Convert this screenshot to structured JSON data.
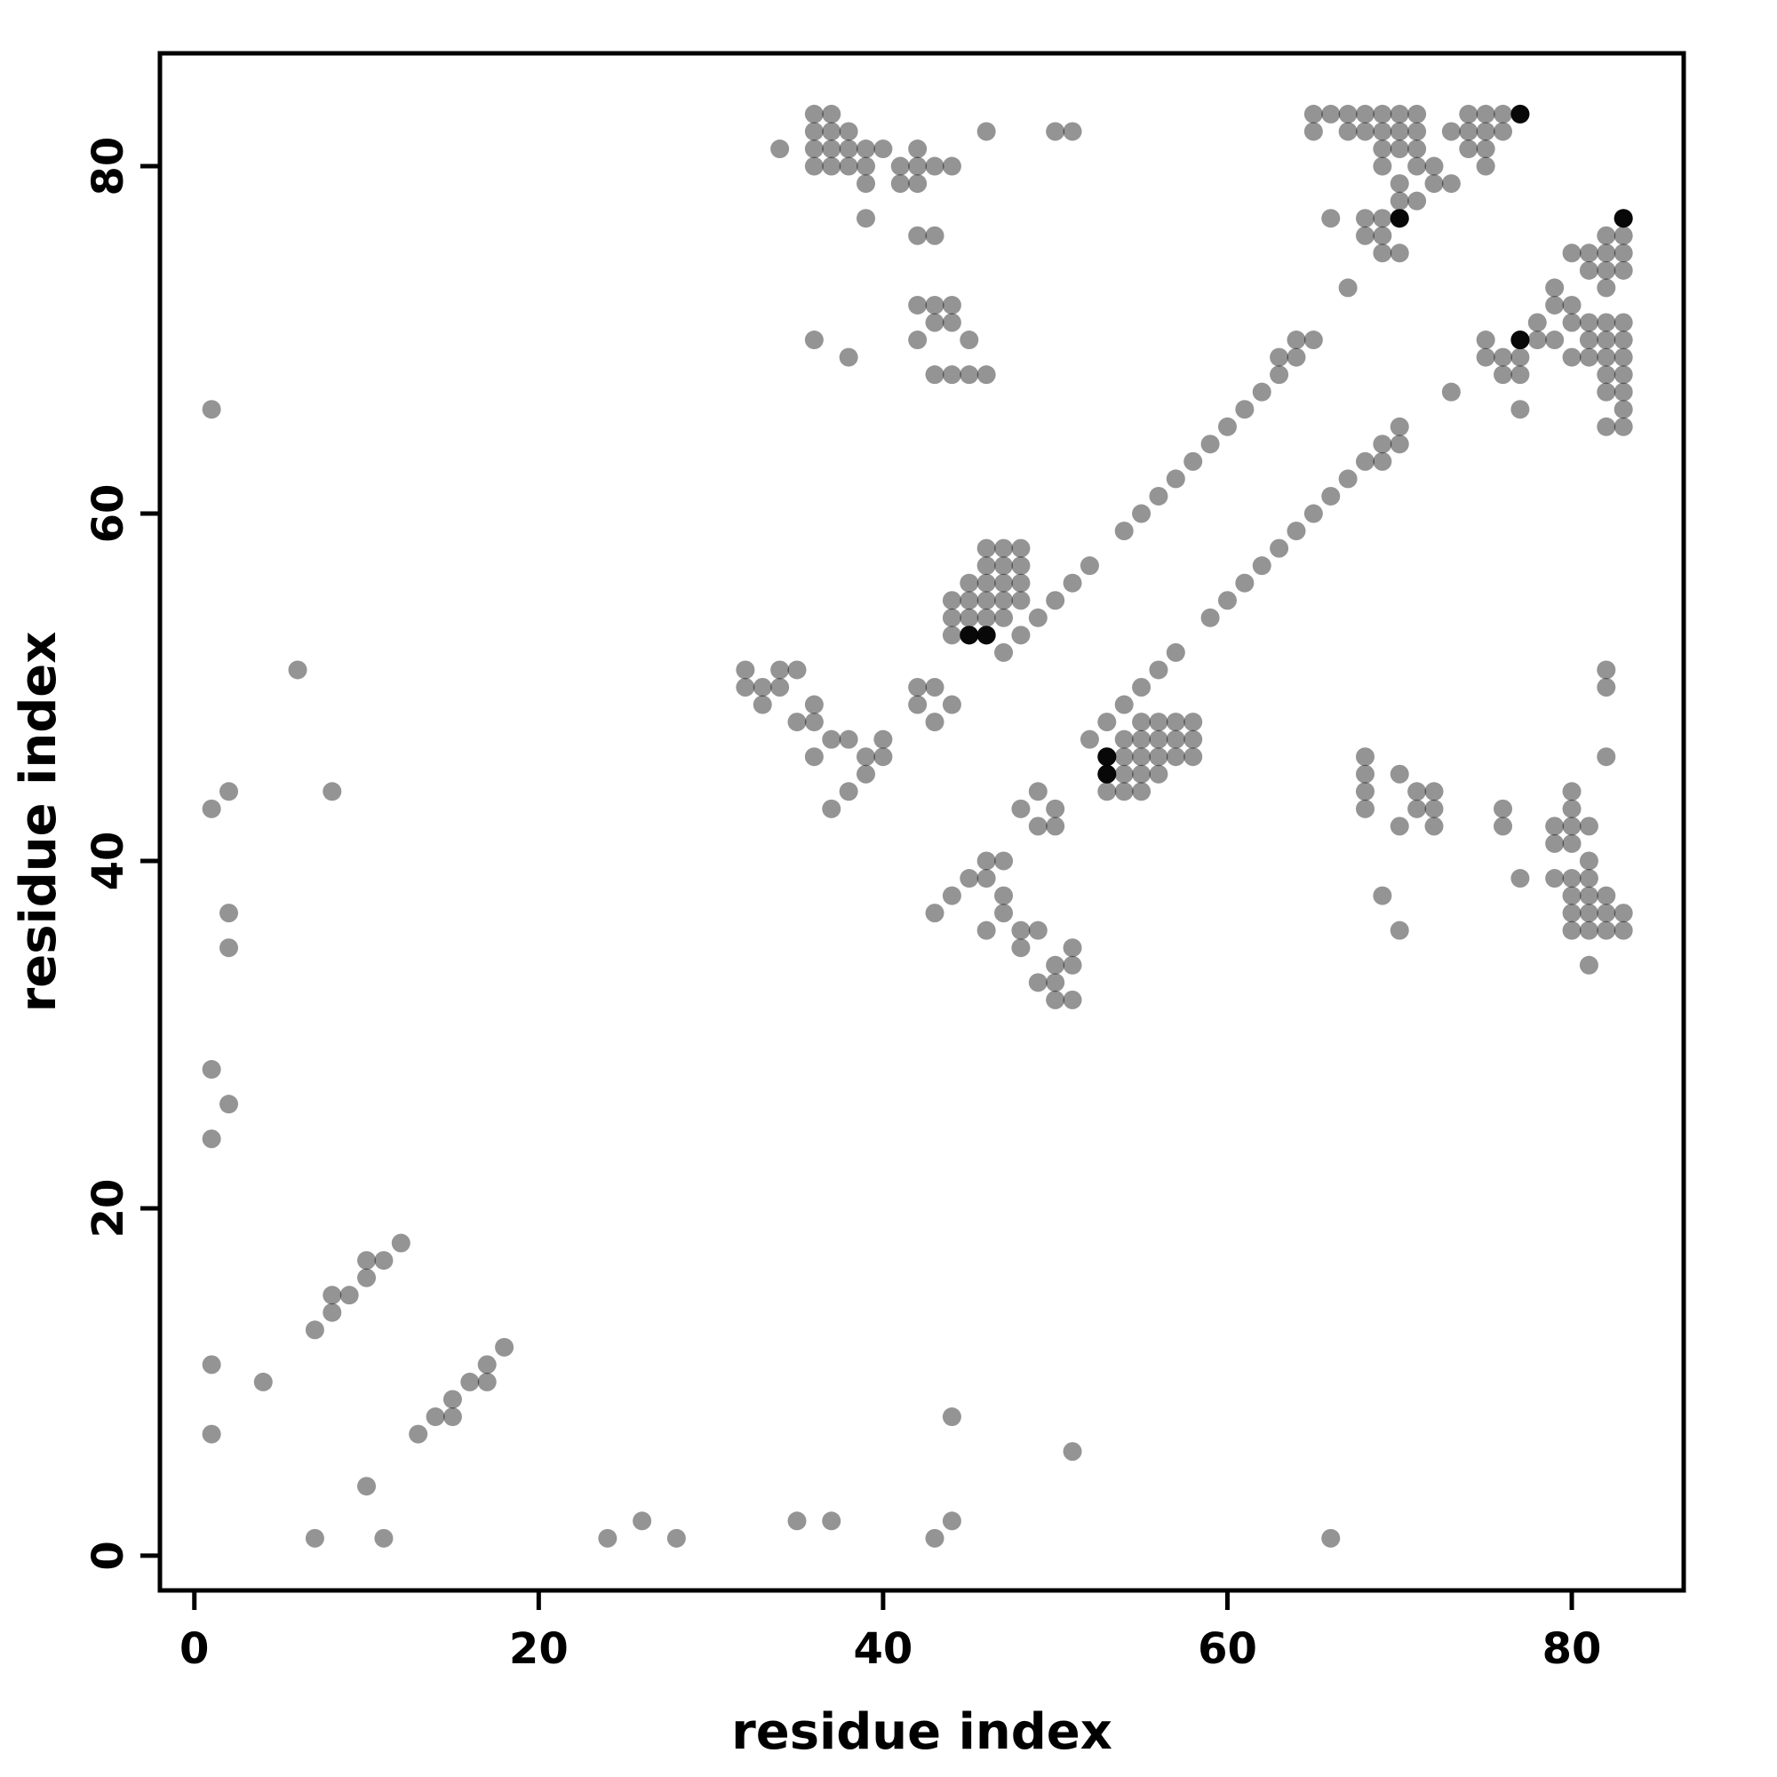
{
  "figure": {
    "background": "#ffffff",
    "point_color": "#000000",
    "point_opacity": 0.42,
    "emphasis_opacity": 0.95,
    "axis_color": "#000000"
  },
  "chart_data": {
    "type": "scatter",
    "title": "",
    "xlabel": "residue index",
    "ylabel": "residue index",
    "xlim": [
      -2,
      86.5
    ],
    "ylim": [
      -2,
      86.5
    ],
    "xticks": [
      0,
      20,
      40,
      60,
      80
    ],
    "yticks": [
      0,
      20,
      40,
      60,
      80
    ],
    "xtick_labels": [
      "0",
      "20",
      "40",
      "60",
      "80"
    ],
    "ytick_labels": [
      "0",
      "20",
      "40",
      "60",
      "80"
    ],
    "grid": false,
    "legend": false,
    "symmetric": true,
    "contacts": [
      [
        1,
        7
      ],
      [
        1,
        11
      ],
      [
        4,
        10
      ],
      [
        7,
        13
      ],
      [
        8,
        14
      ],
      [
        8,
        15
      ],
      [
        9,
        15
      ],
      [
        10,
        16
      ],
      [
        10,
        17
      ],
      [
        11,
        17
      ],
      [
        12,
        18
      ],
      [
        1,
        24
      ],
      [
        2,
        26
      ],
      [
        1,
        28
      ],
      [
        2,
        35
      ],
      [
        2,
        37
      ],
      [
        1,
        43
      ],
      [
        2,
        44
      ],
      [
        8,
        44
      ],
      [
        6,
        51
      ],
      [
        1,
        66
      ],
      [
        44,
        53
      ],
      [
        44,
        54
      ],
      [
        44,
        55
      ],
      [
        45,
        53
      ],
      [
        45,
        54
      ],
      [
        45,
        55
      ],
      [
        45,
        56
      ],
      [
        46,
        53
      ],
      [
        46,
        54
      ],
      [
        46,
        55
      ],
      [
        46,
        56
      ],
      [
        46,
        57
      ],
      [
        46,
        58
      ],
      [
        47,
        54
      ],
      [
        47,
        55
      ],
      [
        47,
        56
      ],
      [
        47,
        57
      ],
      [
        47,
        58
      ],
      [
        48,
        55
      ],
      [
        48,
        56
      ],
      [
        48,
        57
      ],
      [
        48,
        58
      ],
      [
        42,
        49
      ],
      [
        42,
        50
      ],
      [
        43,
        50
      ],
      [
        43,
        48
      ],
      [
        44,
        49
      ],
      [
        47,
        52
      ],
      [
        48,
        53
      ],
      [
        49,
        54
      ],
      [
        50,
        55
      ],
      [
        51,
        56
      ],
      [
        52,
        57
      ],
      [
        54,
        59
      ],
      [
        55,
        60
      ],
      [
        56,
        61
      ],
      [
        57,
        62
      ],
      [
        58,
        63
      ],
      [
        59,
        64
      ],
      [
        60,
        65
      ],
      [
        61,
        66
      ],
      [
        62,
        67
      ],
      [
        63,
        68
      ],
      [
        63,
        69
      ],
      [
        64,
        69
      ],
      [
        64,
        70
      ],
      [
        65,
        70
      ],
      [
        37,
        43
      ],
      [
        38,
        44
      ],
      [
        39,
        45
      ],
      [
        39,
        46
      ],
      [
        40,
        46
      ],
      [
        40,
        47
      ],
      [
        35,
        48
      ],
      [
        36,
        48
      ],
      [
        36,
        49
      ],
      [
        32,
        50
      ],
      [
        33,
        50
      ],
      [
        32,
        51
      ],
      [
        34,
        51
      ],
      [
        35,
        51
      ],
      [
        36,
        46
      ],
      [
        37,
        47
      ],
      [
        38,
        47
      ],
      [
        33,
        49
      ],
      [
        34,
        50
      ],
      [
        36,
        83
      ],
      [
        37,
        83
      ],
      [
        36,
        82
      ],
      [
        37,
        82
      ],
      [
        38,
        82
      ],
      [
        46,
        82
      ],
      [
        50,
        82
      ],
      [
        51,
        82
      ],
      [
        34,
        81
      ],
      [
        36,
        81
      ],
      [
        37,
        81
      ],
      [
        38,
        81
      ],
      [
        39,
        81
      ],
      [
        40,
        81
      ],
      [
        42,
        81
      ],
      [
        36,
        80
      ],
      [
        37,
        80
      ],
      [
        38,
        80
      ],
      [
        39,
        80
      ],
      [
        41,
        80
      ],
      [
        42,
        80
      ],
      [
        43,
        80
      ],
      [
        44,
        80
      ],
      [
        39,
        79
      ],
      [
        41,
        79
      ],
      [
        42,
        79
      ],
      [
        39,
        77
      ],
      [
        42,
        76
      ],
      [
        43,
        76
      ],
      [
        42,
        72
      ],
      [
        43,
        72
      ],
      [
        44,
        72
      ],
      [
        43,
        71
      ],
      [
        44,
        71
      ],
      [
        36,
        70
      ],
      [
        42,
        70
      ],
      [
        45,
        70
      ],
      [
        38,
        69
      ],
      [
        43,
        68
      ],
      [
        44,
        68
      ],
      [
        45,
        68
      ],
      [
        46,
        68
      ],
      [
        67,
        82
      ],
      [
        67,
        83
      ],
      [
        68,
        82
      ],
      [
        68,
        83
      ],
      [
        70,
        82
      ],
      [
        70,
        83
      ],
      [
        71,
        82
      ],
      [
        71,
        83
      ],
      [
        73,
        82
      ],
      [
        74,
        82
      ],
      [
        74,
        83
      ],
      [
        75,
        82
      ],
      [
        75,
        83
      ],
      [
        76,
        82
      ],
      [
        76,
        83
      ],
      [
        77,
        83
      ],
      [
        70,
        81
      ],
      [
        71,
        81
      ],
      [
        74,
        81
      ],
      [
        75,
        81
      ],
      [
        71,
        80
      ],
      [
        72,
        80
      ],
      [
        75,
        80
      ],
      [
        72,
        79
      ],
      [
        73,
        79
      ],
      [
        66,
        77
      ],
      [
        68,
        77
      ],
      [
        69,
        77
      ],
      [
        70,
        77
      ],
      [
        68,
        76
      ],
      [
        69,
        76
      ],
      [
        69,
        75
      ],
      [
        70,
        75
      ],
      [
        65,
        82
      ],
      [
        65,
        83
      ],
      [
        66,
        83
      ],
      [
        69,
        82
      ],
      [
        69,
        83
      ],
      [
        69,
        80
      ],
      [
        69,
        81
      ],
      [
        70,
        78
      ],
      [
        70,
        79
      ],
      [
        71,
        78
      ],
      [
        67,
        73
      ]
    ],
    "emphasized_contacts": [
      [
        77,
        83
      ],
      [
        70,
        77
      ],
      [
        45,
        53
      ],
      [
        46,
        53
      ]
    ]
  }
}
